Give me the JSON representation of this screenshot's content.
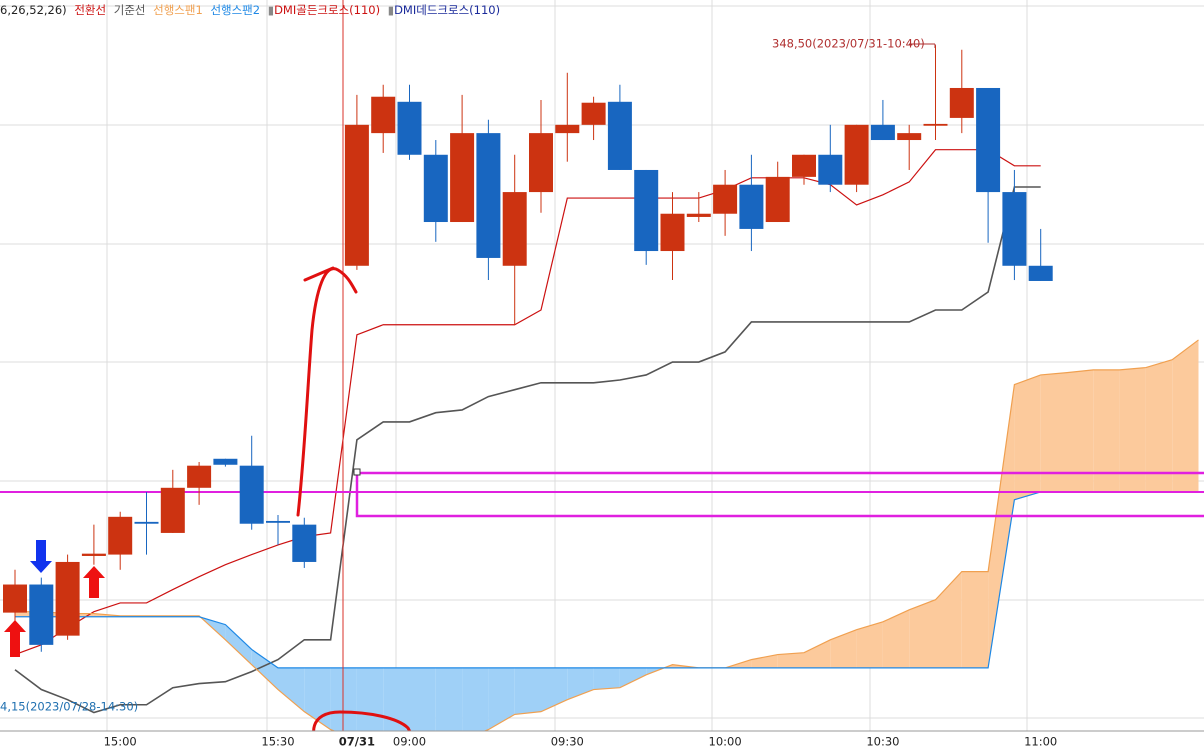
{
  "chart_data": {
    "type": "candlestick",
    "legend_prefix": "6,26,52,26)",
    "dmi_golden": "DMI골든크로스(110)",
    "dmi_dead": "DMI데드크로스(110)",
    "annotation_high": "348,50(2023/07/31-10:40)",
    "annotation_low": "4,15(2023/07/28-14:30)",
    "categories": [
      null,
      null,
      null,
      null,
      "15:00",
      null,
      null,
      null,
      null,
      null,
      "15:30",
      null,
      null,
      "07/31",
      null,
      "09:00",
      null,
      null,
      null,
      null,
      null,
      "09:30",
      null,
      null,
      null,
      null,
      null,
      "10:00",
      null,
      null,
      null,
      null,
      null,
      "10:30",
      null,
      null,
      null,
      null,
      null,
      "11:00",
      null,
      null,
      null,
      null,
      null,
      null
    ],
    "ylim": [
      333.61,
      349.48
    ],
    "grid": true,
    "up_color": "#cc3311",
    "down_color": "#1866c0",
    "open": [
      336.18,
      336.79,
      335.68,
      337.41,
      337.44,
      338.15,
      337.91,
      338.89,
      339.52,
      339.37,
      338.17,
      338.09,
      null,
      343.71,
      346.59,
      347.27,
      346.12,
      344.66,
      346.59,
      343.71,
      345.31,
      346.59,
      346.77,
      347.27,
      345.79,
      344.03,
      344.77,
      344.84,
      345.47,
      344.66,
      345.64,
      346.12,
      345.47,
      346.77,
      346.44,
      346.75,
      346.92,
      347.57,
      345.31,
      343.71,
      null,
      null,
      null,
      null,
      null,
      null
    ],
    "high": [
      337.11,
      336.94,
      337.44,
      338.09,
      338.37,
      338.8,
      339.28,
      339.45,
      339.52,
      340.02,
      338.3,
      338.24,
      null,
      347.42,
      347.64,
      347.64,
      346.44,
      347.42,
      346.88,
      346.12,
      347.31,
      347.9,
      347.38,
      347.64,
      345.79,
      345.31,
      345.31,
      345.79,
      346.12,
      345.97,
      346.12,
      346.77,
      346.77,
      347.31,
      346.77,
      348.5,
      348.4,
      347.57,
      345.79,
      344.51,
      null,
      null,
      null,
      null,
      null,
      null
    ],
    "low": [
      335.92,
      335.33,
      335.59,
      337.22,
      337.11,
      337.44,
      337.91,
      338.52,
      339.35,
      337.98,
      337.65,
      337.15,
      null,
      343.62,
      346.16,
      346.01,
      344.23,
      344.66,
      343.4,
      342.43,
      344.86,
      345.97,
      346.44,
      345.79,
      343.73,
      343.4,
      344.66,
      344.36,
      344.03,
      344.66,
      345.47,
      345.31,
      345.31,
      346.44,
      345.79,
      346.44,
      346.59,
      344.21,
      343.4,
      343.38,
      null,
      null,
      null,
      null,
      null,
      null
    ],
    "close": [
      336.79,
      335.48,
      337.28,
      337.46,
      338.26,
      338.11,
      338.89,
      339.37,
      339.39,
      338.11,
      338.13,
      337.28,
      null,
      346.77,
      347.38,
      346.12,
      344.66,
      346.59,
      343.88,
      345.31,
      346.59,
      346.77,
      347.25,
      345.79,
      344.03,
      344.84,
      344.84,
      345.47,
      344.51,
      345.64,
      346.12,
      345.47,
      346.77,
      346.44,
      346.59,
      346.79,
      347.57,
      345.31,
      343.71,
      343.38,
      null,
      null,
      null,
      null,
      null,
      null
    ],
    "series": [
      {
        "name": "전환선",
        "color": "#cc1111",
        "values": [
          335.27,
          335.48,
          335.85,
          336.2,
          336.39,
          336.39,
          336.68,
          336.96,
          337.22,
          337.44,
          337.65,
          337.83,
          337.91,
          342.21,
          342.43,
          342.43,
          342.43,
          342.43,
          342.43,
          342.43,
          342.75,
          345.18,
          345.18,
          345.18,
          345.18,
          345.18,
          345.18,
          345.36,
          345.62,
          345.62,
          345.62,
          345.47,
          345.03,
          345.25,
          345.53,
          346.23,
          346.23,
          346.23,
          345.88,
          345.88,
          null,
          null,
          null,
          null,
          null,
          null
        ]
      },
      {
        "name": "기준선",
        "color": "#555555",
        "values": [
          334.94,
          334.51,
          334.29,
          334.01,
          334.18,
          334.18,
          334.55,
          334.64,
          334.68,
          334.9,
          335.16,
          335.59,
          335.59,
          339.93,
          340.32,
          340.32,
          340.52,
          340.58,
          340.87,
          341.02,
          341.17,
          341.17,
          341.17,
          341.23,
          341.34,
          341.62,
          341.62,
          341.84,
          342.49,
          342.49,
          342.49,
          342.49,
          342.49,
          342.49,
          342.49,
          342.75,
          342.75,
          343.14,
          345.42,
          345.42,
          null,
          null,
          null,
          null,
          null,
          null
        ]
      },
      {
        "name": "선행스팬1",
        "color": "#f0a050",
        "values": [
          336.2,
          336.2,
          336.16,
          336.16,
          336.11,
          336.11,
          336.11,
          336.11,
          335.59,
          335.05,
          334.51,
          334.03,
          333.64,
          333.42,
          333.42,
          333.42,
          333.42,
          333.42,
          333.64,
          333.97,
          334.03,
          334.29,
          334.51,
          334.55,
          334.83,
          335.05,
          334.98,
          334.98,
          335.16,
          335.27,
          335.31,
          335.59,
          335.81,
          335.98,
          336.24,
          336.46,
          337.07,
          337.07,
          341.13,
          341.34,
          341.39,
          341.45,
          341.45,
          341.5,
          341.67,
          342.1
        ]
      },
      {
        "name": "선행스팬2",
        "color": "#1e88e5",
        "values": [
          336.09,
          336.09,
          336.09,
          336.09,
          336.09,
          336.09,
          336.09,
          336.09,
          335.92,
          335.38,
          334.98,
          334.98,
          334.98,
          334.98,
          334.98,
          334.98,
          334.98,
          334.98,
          334.98,
          334.98,
          334.98,
          334.98,
          334.98,
          334.98,
          334.98,
          334.98,
          334.98,
          334.98,
          334.98,
          334.98,
          334.98,
          334.98,
          334.98,
          334.98,
          334.98,
          334.98,
          334.98,
          334.98,
          338.63,
          338.8,
          338.8,
          338.8,
          338.8,
          338.8,
          338.8,
          338.8
        ]
      }
    ],
    "cloud_up_color": "#fcca9c",
    "cloud_down_color": "#9fd0f7"
  }
}
